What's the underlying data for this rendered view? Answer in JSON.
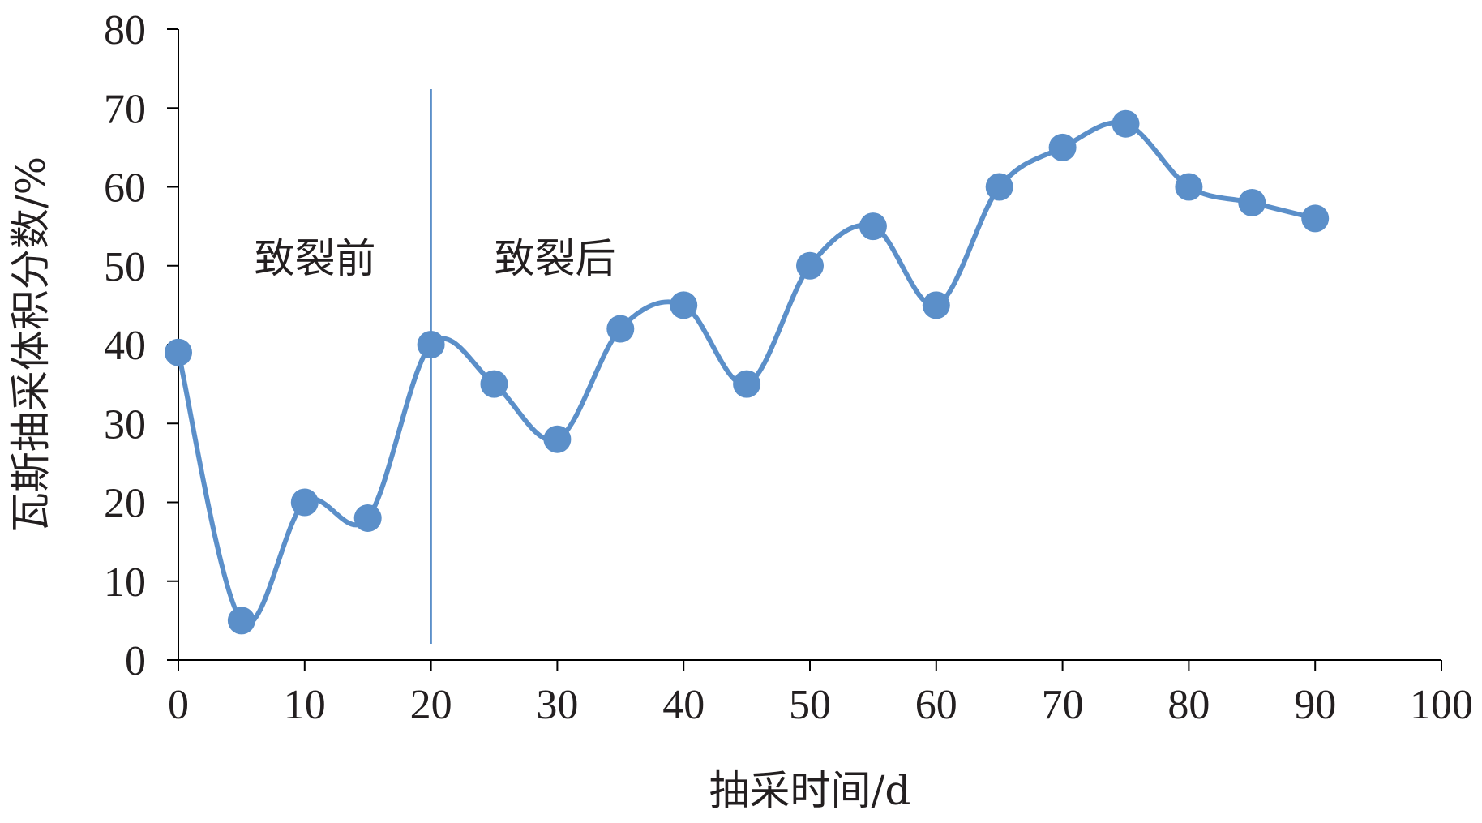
{
  "chart_data": {
    "type": "line",
    "title": "",
    "xlabel": "抽采时间/d",
    "ylabel": "瓦斯抽采体积分数/%",
    "xlim": [
      0,
      100
    ],
    "ylim": [
      0,
      80
    ],
    "xticks": [
      0,
      10,
      20,
      30,
      40,
      50,
      60,
      70,
      80,
      90,
      100
    ],
    "yticks": [
      0,
      10,
      20,
      30,
      40,
      50,
      60,
      70,
      80
    ],
    "grid": false,
    "smooth": true,
    "series": [
      {
        "color": "#5b8fc9",
        "x": [
          0,
          5,
          10,
          15,
          20,
          25,
          30,
          35,
          40,
          45,
          50,
          55,
          60,
          65,
          70,
          75,
          80,
          85,
          90
        ],
        "y": [
          39,
          5,
          20,
          18,
          40,
          35,
          28,
          42,
          45,
          35,
          50,
          55,
          45,
          60,
          65,
          68,
          60,
          58,
          56
        ]
      }
    ],
    "divider": {
      "x": 20,
      "color": "#5b8fc9"
    },
    "annotations": [
      {
        "text": "致裂前",
        "x": 6,
        "y": 51
      },
      {
        "text": "致裂后",
        "x": 25,
        "y": 51
      }
    ]
  }
}
